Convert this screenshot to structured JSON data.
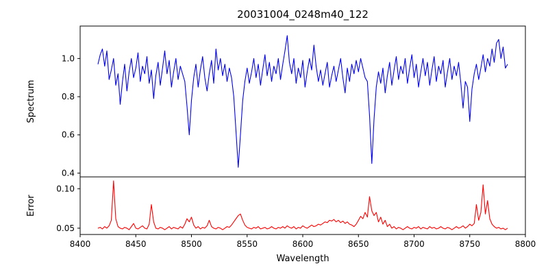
{
  "chart_data": {
    "type": "line",
    "title": "20031004_0248m40_122",
    "xlabel": "Wavelength",
    "xlim": [
      8400,
      8800
    ],
    "xticks": [
      8400,
      8450,
      8500,
      8550,
      8600,
      8650,
      8700,
      8750,
      8800
    ],
    "x_start": 8416,
    "x_step": 2,
    "grid": false,
    "legend": "none",
    "panels": [
      {
        "name": "spectrum",
        "ylabel": "Spectrum",
        "color": "#0000ee",
        "ylim": [
          0.38,
          1.17
        ],
        "yticks": [
          0.4,
          0.6,
          0.8,
          1.0
        ],
        "ytick_labels": [
          "0.4",
          "0.6",
          "0.8",
          "1.0"
        ],
        "features": "Ca II triplet absorption dips near 8498, 8542, 8662; noisy continuum near 1.0",
        "values": [
          0.97,
          1.02,
          1.05,
          0.96,
          1.04,
          0.89,
          0.94,
          1.0,
          0.86,
          0.92,
          0.76,
          0.88,
          0.97,
          0.83,
          0.93,
          1.0,
          0.9,
          0.95,
          1.03,
          0.88,
          0.96,
          0.92,
          1.01,
          0.87,
          0.94,
          0.79,
          0.91,
          0.98,
          0.86,
          0.95,
          1.04,
          0.92,
          0.99,
          0.85,
          0.93,
          1.0,
          0.89,
          0.96,
          0.92,
          0.88,
          0.75,
          0.6,
          0.78,
          0.9,
          0.97,
          0.85,
          0.94,
          1.01,
          0.9,
          0.83,
          0.92,
          0.99,
          0.87,
          1.05,
          0.94,
          1.0,
          0.91,
          0.97,
          0.88,
          0.95,
          0.9,
          0.8,
          0.62,
          0.43,
          0.6,
          0.78,
          0.88,
          0.95,
          0.87,
          0.93,
          1.0,
          0.9,
          0.97,
          0.86,
          0.94,
          1.02,
          0.91,
          0.98,
          0.88,
          0.96,
          0.92,
          1.0,
          0.89,
          0.97,
          1.04,
          1.12,
          0.98,
          0.92,
          1.0,
          0.87,
          0.95,
          0.9,
          0.99,
          0.85,
          0.93,
          1.0,
          0.94,
          1.07,
          0.96,
          0.88,
          0.94,
          0.86,
          0.92,
          0.98,
          0.85,
          0.91,
          0.96,
          0.88,
          0.94,
          1.0,
          0.9,
          0.82,
          0.95,
          0.88,
          0.97,
          0.92,
          0.99,
          0.93,
          1.0,
          0.95,
          0.9,
          0.88,
          0.7,
          0.45,
          0.68,
          0.85,
          0.93,
          0.87,
          0.95,
          0.82,
          0.91,
          0.98,
          0.86,
          0.94,
          1.01,
          0.89,
          0.96,
          0.92,
          1.0,
          0.87,
          0.95,
          1.02,
          0.9,
          0.97,
          0.85,
          0.93,
          1.0,
          0.91,
          0.98,
          0.86,
          0.94,
          1.01,
          0.88,
          0.96,
          0.92,
          0.99,
          0.85,
          0.93,
          1.0,
          0.89,
          0.96,
          0.91,
          0.98,
          0.87,
          0.74,
          0.88,
          0.85,
          0.67,
          0.84,
          0.92,
          0.97,
          0.89,
          0.95,
          1.02,
          0.93,
          1.0,
          0.96,
          1.05,
          0.98,
          1.08,
          1.1,
          1.0,
          1.06,
          0.95,
          0.97
        ]
      },
      {
        "name": "error",
        "ylabel": "Error",
        "color": "#ff0000",
        "ylim": [
          0.042,
          0.115
        ],
        "yticks": [
          0.05,
          0.1
        ],
        "ytick_labels": [
          "0.05",
          "0.10"
        ],
        "features": "baseline near 0.05 with spikes near 8430, 8464, 8660, 8762",
        "values": [
          0.05,
          0.051,
          0.049,
          0.052,
          0.05,
          0.053,
          0.06,
          0.11,
          0.062,
          0.052,
          0.05,
          0.049,
          0.051,
          0.05,
          0.048,
          0.052,
          0.056,
          0.05,
          0.049,
          0.051,
          0.053,
          0.05,
          0.049,
          0.055,
          0.08,
          0.058,
          0.05,
          0.049,
          0.051,
          0.05,
          0.048,
          0.05,
          0.052,
          0.049,
          0.051,
          0.05,
          0.049,
          0.052,
          0.05,
          0.055,
          0.062,
          0.058,
          0.064,
          0.054,
          0.05,
          0.052,
          0.049,
          0.051,
          0.05,
          0.053,
          0.06,
          0.052,
          0.05,
          0.049,
          0.051,
          0.05,
          0.048,
          0.05,
          0.052,
          0.051,
          0.054,
          0.058,
          0.062,
          0.066,
          0.068,
          0.06,
          0.054,
          0.051,
          0.05,
          0.049,
          0.051,
          0.05,
          0.052,
          0.049,
          0.05,
          0.051,
          0.049,
          0.05,
          0.052,
          0.05,
          0.049,
          0.051,
          0.05,
          0.052,
          0.05,
          0.053,
          0.051,
          0.05,
          0.052,
          0.049,
          0.051,
          0.05,
          0.053,
          0.051,
          0.05,
          0.052,
          0.054,
          0.052,
          0.053,
          0.055,
          0.054,
          0.056,
          0.058,
          0.057,
          0.06,
          0.059,
          0.061,
          0.058,
          0.06,
          0.057,
          0.059,
          0.056,
          0.058,
          0.055,
          0.054,
          0.052,
          0.055,
          0.06,
          0.065,
          0.062,
          0.07,
          0.064,
          0.09,
          0.072,
          0.066,
          0.07,
          0.058,
          0.064,
          0.055,
          0.06,
          0.052,
          0.055,
          0.05,
          0.052,
          0.049,
          0.051,
          0.05,
          0.048,
          0.05,
          0.052,
          0.05,
          0.049,
          0.051,
          0.05,
          0.052,
          0.049,
          0.051,
          0.05,
          0.049,
          0.052,
          0.05,
          0.051,
          0.049,
          0.05,
          0.052,
          0.05,
          0.049,
          0.051,
          0.05,
          0.048,
          0.05,
          0.052,
          0.05,
          0.051,
          0.053,
          0.05,
          0.052,
          0.055,
          0.053,
          0.056,
          0.08,
          0.06,
          0.07,
          0.105,
          0.068,
          0.085,
          0.062,
          0.055,
          0.052,
          0.05,
          0.051,
          0.049,
          0.05,
          0.048,
          0.05
        ]
      }
    ]
  }
}
